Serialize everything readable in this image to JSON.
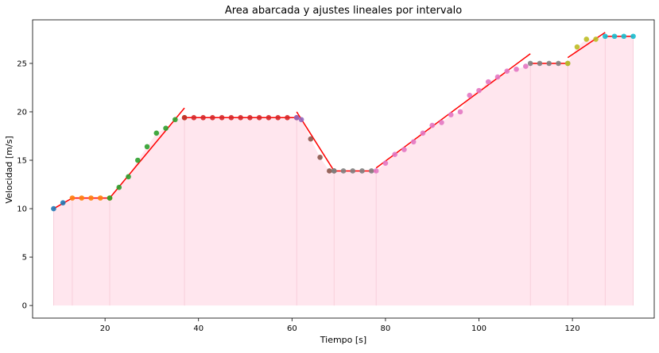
{
  "chart_data": {
    "type": "line",
    "title": "Area abarcada y ajustes lineales por intervalo",
    "xlabel": "Tiempo [s]",
    "ylabel": "Velocidad [m/s]",
    "xlim": [
      4.5,
      137.5
    ],
    "ylim": [
      -1.3,
      29.5
    ],
    "xticks": [
      20,
      40,
      60,
      80,
      100,
      120
    ],
    "yticks": [
      0,
      5,
      10,
      15,
      20,
      25
    ],
    "grid": false,
    "legend": "none",
    "colors": {
      "area_fill": "#ffe6ee",
      "area_edge": "#f6c9d6",
      "fit_line": "#ff0000",
      "axes": "#000000"
    },
    "area_boundaries": [
      9,
      13,
      21,
      37,
      61,
      69,
      78,
      111,
      119,
      127,
      133
    ],
    "series": [
      {
        "color": "#1f77b4",
        "x": [
          9,
          11
        ],
        "y": [
          10.0,
          10.6
        ]
      },
      {
        "color": "#ff7f0e",
        "x": [
          13,
          15,
          17,
          19,
          21
        ],
        "y": [
          11.1,
          11.1,
          11.1,
          11.1,
          11.1
        ]
      },
      {
        "color": "#2ca02c",
        "x": [
          21,
          23,
          25,
          27,
          29,
          31,
          33,
          35,
          37
        ],
        "y": [
          11.1,
          12.2,
          13.3,
          15.0,
          16.4,
          17.8,
          18.3,
          19.2,
          19.4
        ]
      },
      {
        "color": "#d62728",
        "x": [
          37,
          39,
          41,
          43,
          45,
          47,
          49,
          51,
          53,
          55,
          57,
          59,
          61
        ],
        "y": [
          19.4,
          19.4,
          19.4,
          19.4,
          19.4,
          19.4,
          19.4,
          19.4,
          19.4,
          19.4,
          19.4,
          19.4,
          19.4
        ]
      },
      {
        "color": "#9467bd",
        "x": [
          61,
          62
        ],
        "y": [
          19.4,
          19.2
        ]
      },
      {
        "color": "#8c564b",
        "x": [
          64,
          66,
          68,
          69
        ],
        "y": [
          17.2,
          15.3,
          13.9,
          13.9
        ]
      },
      {
        "color": "#7f7f7f",
        "x": [
          69,
          71,
          73,
          75,
          77
        ],
        "y": [
          13.9,
          13.9,
          13.9,
          13.9,
          13.9
        ]
      },
      {
        "color": "#e377c2",
        "x": [
          78,
          80,
          82,
          84,
          86,
          88,
          90,
          92,
          94,
          96,
          98,
          100,
          102,
          104,
          106,
          108,
          110
        ],
        "y": [
          13.9,
          14.7,
          15.6,
          16.1,
          16.9,
          17.8,
          18.6,
          18.9,
          19.7,
          20.0,
          21.7,
          22.2,
          23.1,
          23.6,
          24.2,
          24.4,
          24.7
        ]
      },
      {
        "color": "#7f7f7f",
        "x": [
          111,
          113,
          115,
          117,
          119
        ],
        "y": [
          25.0,
          25.0,
          25.0,
          25.0,
          25.0
        ]
      },
      {
        "color": "#bcbd22",
        "x": [
          119,
          121,
          123,
          125
        ],
        "y": [
          25.0,
          26.7,
          27.5,
          27.5
        ]
      },
      {
        "color": "#17becf",
        "x": [
          127,
          129,
          131,
          133
        ],
        "y": [
          27.8,
          27.8,
          27.8,
          27.8
        ]
      }
    ],
    "fit_lines": [
      {
        "x": [
          9,
          13
        ],
        "y": [
          10.0,
          11.1
        ]
      },
      {
        "x": [
          13,
          21
        ],
        "y": [
          11.1,
          11.1
        ]
      },
      {
        "x": [
          21,
          37
        ],
        "y": [
          11.1,
          20.4
        ]
      },
      {
        "x": [
          37,
          61
        ],
        "y": [
          19.4,
          19.4
        ]
      },
      {
        "x": [
          61,
          69
        ],
        "y": [
          20.0,
          13.9
        ]
      },
      {
        "x": [
          69,
          78
        ],
        "y": [
          13.9,
          13.9
        ]
      },
      {
        "x": [
          78,
          111
        ],
        "y": [
          14.2,
          26.0
        ]
      },
      {
        "x": [
          111,
          119
        ],
        "y": [
          25.0,
          25.0
        ]
      },
      {
        "x": [
          119,
          127
        ],
        "y": [
          25.6,
          28.2
        ]
      },
      {
        "x": [
          127,
          133
        ],
        "y": [
          27.8,
          27.8
        ]
      }
    ]
  }
}
